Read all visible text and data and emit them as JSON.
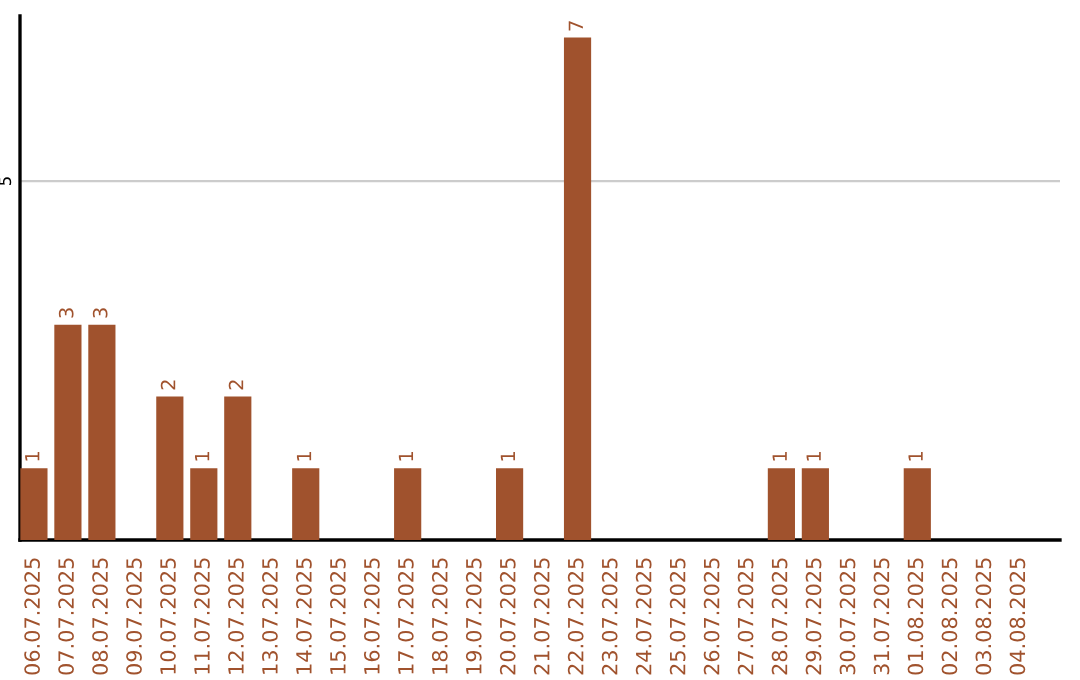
{
  "chart_data": {
    "type": "bar",
    "categories": [
      "06.07.2025",
      "07.07.2025",
      "08.07.2025",
      "09.07.2025",
      "10.07.2025",
      "11.07.2025",
      "12.07.2025",
      "13.07.2025",
      "14.07.2025",
      "15.07.2025",
      "16.07.2025",
      "17.07.2025",
      "18.07.2025",
      "19.07.2025",
      "20.07.2025",
      "21.07.2025",
      "22.07.2025",
      "23.07.2025",
      "24.07.2025",
      "25.07.2025",
      "26.07.2025",
      "27.07.2025",
      "28.07.2025",
      "29.07.2025",
      "30.07.2025",
      "31.07.2025",
      "01.08.2025",
      "02.08.2025",
      "03.08.2025",
      "04.08.2025"
    ],
    "values": [
      1,
      3,
      3,
      0,
      2,
      1,
      2,
      0,
      1,
      0,
      0,
      1,
      0,
      0,
      1,
      0,
      7,
      0,
      0,
      0,
      0,
      0,
      1,
      1,
      0,
      0,
      1,
      0,
      0,
      0
    ],
    "value_labels": [
      "1",
      "3",
      "3",
      null,
      "2",
      "1",
      "2",
      null,
      "1",
      null,
      null,
      "1",
      null,
      null,
      "1",
      null,
      "7",
      null,
      null,
      null,
      null,
      null,
      "1",
      "1",
      null,
      null,
      "1",
      null,
      null,
      null
    ],
    "color": "#a0522d",
    "ylim": [
      0,
      7.3
    ],
    "yticks": [
      5
    ],
    "grid": "y"
  }
}
